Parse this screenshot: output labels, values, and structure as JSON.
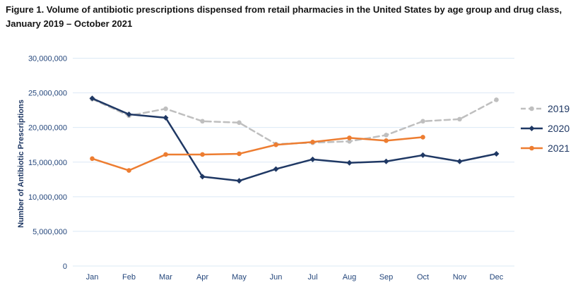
{
  "figure_title": "Figure 1. Volume of antibiotic prescriptions dispensed from retail pharmacies in the United States by age group and drug class, January 2019 – October 2021",
  "chart_data": {
    "type": "line",
    "title": "Figure 1. Volume of antibiotic prescriptions dispensed from retail pharmacies in the United States by age group and drug class, January 2019 – October 2021",
    "categories": [
      "Jan",
      "Feb",
      "Mar",
      "Apr",
      "May",
      "Jun",
      "Jul",
      "Aug",
      "Sep",
      "Oct",
      "Nov",
      "Dec"
    ],
    "xlabel": "",
    "ylabel": "Number of Antibiotic Prescriptions",
    "ylim": [
      0,
      30000000
    ],
    "ytick_interval": 5000000,
    "ytick_labels": [
      "0",
      "5,000,000",
      "10,000,000",
      "15,000,000",
      "20,000,000",
      "25,000,000",
      "30,000,000"
    ],
    "grid": "horizontal",
    "legend_position": "right",
    "legend_entries": [
      "2019",
      "2020",
      "2021"
    ],
    "accent_colors": {
      "navy_text": "#1f3864",
      "gridline": "#dbe8f5",
      "series_2019": "#bfbfbf",
      "series_2020": "#1f3864",
      "series_2021": "#ed7d31"
    },
    "series": [
      {
        "name": "2019",
        "color": "#bfbfbf",
        "line_style": "dashed",
        "marker": "circle",
        "values": [
          24100000,
          21700000,
          22700000,
          20900000,
          20700000,
          17600000,
          17800000,
          18000000,
          18900000,
          20900000,
          21200000,
          24000000
        ]
      },
      {
        "name": "2020",
        "color": "#1f3864",
        "line_style": "solid",
        "marker": "diamond",
        "values": [
          24200000,
          21900000,
          21400000,
          12900000,
          12300000,
          14000000,
          15400000,
          14900000,
          15100000,
          16000000,
          15100000,
          16200000
        ]
      },
      {
        "name": "2021",
        "color": "#ed7d31",
        "line_style": "solid",
        "marker": "circle",
        "values": [
          15500000,
          13800000,
          16100000,
          16100000,
          16200000,
          17500000,
          17900000,
          18500000,
          18100000,
          18600000
        ]
      }
    ]
  }
}
